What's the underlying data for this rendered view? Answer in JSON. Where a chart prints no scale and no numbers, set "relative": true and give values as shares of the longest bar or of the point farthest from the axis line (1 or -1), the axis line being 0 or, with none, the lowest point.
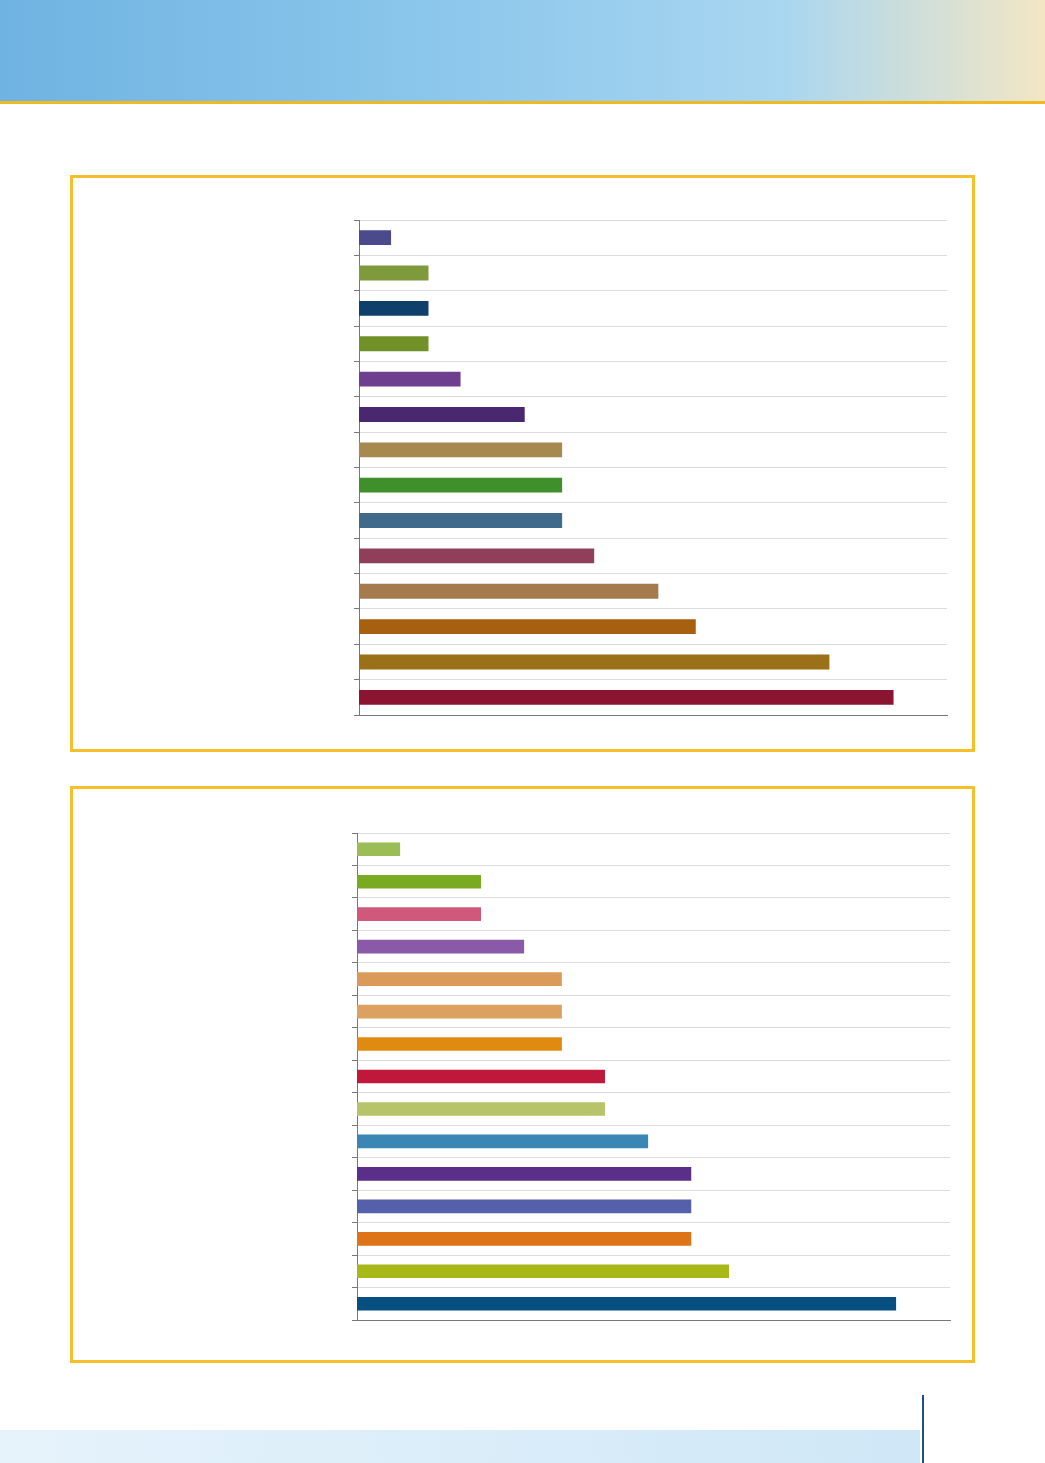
{
  "chart_data": [
    {
      "type": "bar",
      "orientation": "horizontal",
      "relative": true,
      "grid": "y",
      "tick_labels": false,
      "categories": [
        null,
        null,
        null,
        null,
        null,
        null,
        null,
        null,
        null,
        null,
        null,
        null,
        null,
        null
      ],
      "values": [
        0.06,
        0.13,
        0.13,
        0.13,
        0.19,
        0.31,
        0.38,
        0.38,
        0.38,
        0.44,
        0.56,
        0.63,
        0.88,
        1
      ],
      "colors": [
        "#4b4a8c",
        "#7e9a3c",
        "#0f3f6b",
        "#6f9127",
        "#6f3f8f",
        "#4a2870",
        "#a6894c",
        "#3f8f2a",
        "#3f6a8a",
        "#8f3f5a",
        "#a57a4c",
        "#a6600f",
        "#9a7019",
        "#8b1530"
      ]
    },
    {
      "type": "bar",
      "orientation": "horizontal",
      "relative": true,
      "grid": "y",
      "tick_labels": false,
      "categories": [
        null,
        null,
        null,
        null,
        null,
        null,
        null,
        null,
        null,
        null,
        null,
        null,
        null,
        null,
        null
      ],
      "values": [
        0.08,
        0.23,
        0.23,
        0.31,
        0.38,
        0.38,
        0.38,
        0.46,
        0.46,
        0.54,
        0.62,
        0.62,
        0.62,
        0.69,
        1
      ],
      "colors": [
        "#9bbd55",
        "#7aaa22",
        "#d0587a",
        "#8a5aa8",
        "#dc9a5a",
        "#dca060",
        "#e08a10",
        "#c0183a",
        "#b7c46a",
        "#3a86b5",
        "#5a2f8a",
        "#5560aa",
        "#de7418",
        "#a8b818",
        "#074f80"
      ]
    }
  ]
}
